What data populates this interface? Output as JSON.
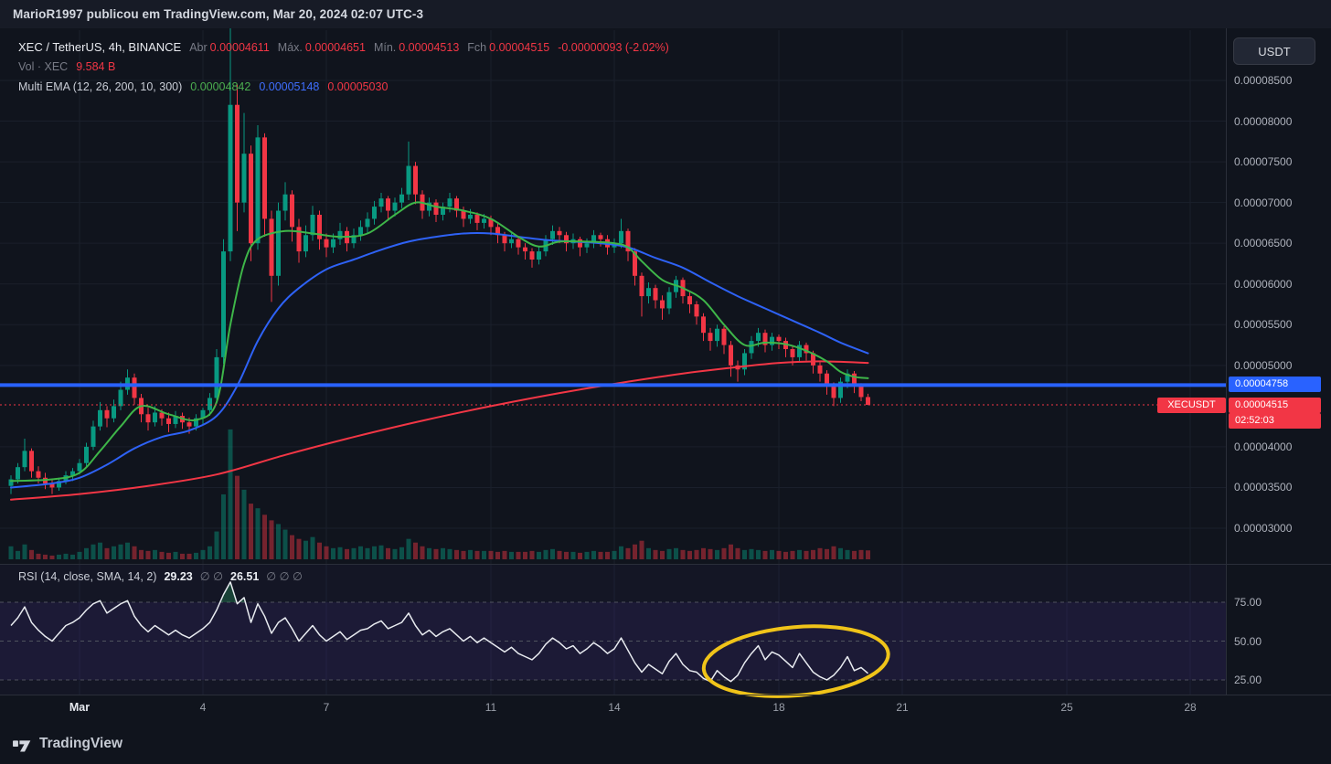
{
  "attribution": {
    "text": "MarioR1997 publicou em TradingView.com, Mar 20, 2024 02:07 UTC-3"
  },
  "header": {
    "symbol_line": {
      "title": "XEC / TetherUS, 4h, BINANCE",
      "open_label": "Abr",
      "open": "0.00004611",
      "high_label": "Máx.",
      "high": "0.00004651",
      "low_label": "Mín.",
      "low": "0.00004513",
      "close_label": "Fch",
      "close": "0.00004515",
      "change": "-0.00000093 (-2.02%)"
    },
    "volume_line": {
      "label": "Vol · XEC",
      "value": "9.584 B"
    },
    "ema_line": {
      "label": "Multi EMA (12, 26, 200, 10, 300)",
      "ema_fast": "0.00004842",
      "ema_mid": "0.00005148",
      "ema_slow": "0.00005030"
    }
  },
  "price_axis": {
    "currency_button": "USDT",
    "ticks": [
      {
        "label": "0.00008500",
        "price": 8.5
      },
      {
        "label": "0.00008000",
        "price": 8.0
      },
      {
        "label": "0.00007500",
        "price": 7.5
      },
      {
        "label": "0.00007000",
        "price": 7.0
      },
      {
        "label": "0.00006500",
        "price": 6.5
      },
      {
        "label": "0.00006000",
        "price": 6.0
      },
      {
        "label": "0.00005500",
        "price": 5.5
      },
      {
        "label": "0.00005000",
        "price": 5.0
      },
      {
        "label": "0.00004000",
        "price": 4.0
      },
      {
        "label": "0.00003500",
        "price": 3.5
      },
      {
        "label": "0.00003000",
        "price": 3.0
      }
    ],
    "blue_line": {
      "label": "0.00004758",
      "price": 4.758
    },
    "last": {
      "symbol_tag": "XECUSDT",
      "label": "0.00004515",
      "price": 4.515,
      "countdown": "02:52:03"
    }
  },
  "time_axis": {
    "ticks": [
      {
        "label": "Mar",
        "index": 10,
        "major": true
      },
      {
        "label": "4",
        "index": 28
      },
      {
        "label": "7",
        "index": 46
      },
      {
        "label": "11",
        "index": 70
      },
      {
        "label": "14",
        "index": 88
      },
      {
        "label": "18",
        "index": 112
      },
      {
        "label": "21",
        "index": 130
      },
      {
        "label": "25",
        "index": 154
      },
      {
        "label": "28",
        "index": 172
      }
    ]
  },
  "rsi_legend": {
    "title": "RSI (14, close, SMA, 14, 2)",
    "value": "29.23",
    "hidden1": "∅ ∅",
    "sma_value": "26.51",
    "hidden2": "∅ ∅ ∅",
    "levels": [
      {
        "label": "75.00",
        "value": 75
      },
      {
        "label": "50.00",
        "value": 50
      },
      {
        "label": "25.00",
        "value": 25
      }
    ]
  },
  "footer": {
    "brand": "TradingView"
  },
  "colors": {
    "up": "#089981",
    "down": "#f23645",
    "ema_fast": "#3eb649",
    "ema_mid": "#2e62f6",
    "ema_slow": "#f23645",
    "ray": "#2962ff",
    "rsi_line": "#e8ebf0",
    "annotation": "#f0c419",
    "grid": "#1a1f2b",
    "separator": "#2a2e39"
  },
  "chart_data": {
    "type": "candlestick",
    "title": "XEC / TetherUS, 4h, BINANCE",
    "exchange": "BINANCE",
    "interval": "4h",
    "price_unit": "1e-5 USDT",
    "volume_unit": "billion XEC",
    "ylim": [
      2.56,
      9.12
    ],
    "candles": [
      [
        3.52,
        3.65,
        3.42,
        3.6
      ],
      [
        3.6,
        3.8,
        3.55,
        3.75
      ],
      [
        3.75,
        4.1,
        3.7,
        3.95
      ],
      [
        3.95,
        3.98,
        3.62,
        3.7
      ],
      [
        3.7,
        3.76,
        3.55,
        3.62
      ],
      [
        3.62,
        3.68,
        3.48,
        3.55
      ],
      [
        3.55,
        3.6,
        3.42,
        3.5
      ],
      [
        3.5,
        3.62,
        3.46,
        3.58
      ],
      [
        3.58,
        3.7,
        3.54,
        3.65
      ],
      [
        3.65,
        3.74,
        3.58,
        3.7
      ],
      [
        3.7,
        3.85,
        3.66,
        3.8
      ],
      [
        3.8,
        4.05,
        3.76,
        4.0
      ],
      [
        4.0,
        4.32,
        3.96,
        4.25
      ],
      [
        4.25,
        4.55,
        4.2,
        4.45
      ],
      [
        4.45,
        4.5,
        4.24,
        4.35
      ],
      [
        4.35,
        4.58,
        4.3,
        4.5
      ],
      [
        4.5,
        4.8,
        4.45,
        4.7
      ],
      [
        4.7,
        4.95,
        4.64,
        4.85
      ],
      [
        4.85,
        4.9,
        4.52,
        4.6
      ],
      [
        4.6,
        4.65,
        4.3,
        4.4
      ],
      [
        4.4,
        4.48,
        4.2,
        4.3
      ],
      [
        4.3,
        4.5,
        4.25,
        4.42
      ],
      [
        4.42,
        4.46,
        4.26,
        4.35
      ],
      [
        4.35,
        4.42,
        4.18,
        4.28
      ],
      [
        4.28,
        4.44,
        4.23,
        4.38
      ],
      [
        4.38,
        4.42,
        4.22,
        4.3
      ],
      [
        4.3,
        4.36,
        4.16,
        4.25
      ],
      [
        4.25,
        4.4,
        4.2,
        4.35
      ],
      [
        4.35,
        4.48,
        4.28,
        4.45
      ],
      [
        4.45,
        4.66,
        4.38,
        4.6
      ],
      [
        4.6,
        5.2,
        4.55,
        5.1
      ],
      [
        5.1,
        6.55,
        5.02,
        6.4
      ],
      [
        6.4,
        9.15,
        6.28,
        8.2
      ],
      [
        8.2,
        8.45,
        6.65,
        7.0
      ],
      [
        7.0,
        8.1,
        6.88,
        7.6
      ],
      [
        7.6,
        7.7,
        6.28,
        6.5
      ],
      [
        6.5,
        7.95,
        6.42,
        7.8
      ],
      [
        7.8,
        7.85,
        6.58,
        6.8
      ],
      [
        6.8,
        6.9,
        5.78,
        6.1
      ],
      [
        6.1,
        7.0,
        5.98,
        6.9
      ],
      [
        6.9,
        7.25,
        6.78,
        7.1
      ],
      [
        7.1,
        7.15,
        6.52,
        6.7
      ],
      [
        6.7,
        6.8,
        6.26,
        6.4
      ],
      [
        6.4,
        6.72,
        6.33,
        6.6
      ],
      [
        6.6,
        6.96,
        6.53,
        6.85
      ],
      [
        6.85,
        6.9,
        6.42,
        6.55
      ],
      [
        6.55,
        6.62,
        6.33,
        6.45
      ],
      [
        6.45,
        6.62,
        6.38,
        6.55
      ],
      [
        6.55,
        6.75,
        6.48,
        6.65
      ],
      [
        6.65,
        6.7,
        6.4,
        6.5
      ],
      [
        6.5,
        6.68,
        6.44,
        6.6
      ],
      [
        6.6,
        6.78,
        6.53,
        6.7
      ],
      [
        6.7,
        6.88,
        6.63,
        6.8
      ],
      [
        6.8,
        7.02,
        6.73,
        6.95
      ],
      [
        6.95,
        7.12,
        6.88,
        7.05
      ],
      [
        7.05,
        7.08,
        6.8,
        6.9
      ],
      [
        6.9,
        7.06,
        6.83,
        7.0
      ],
      [
        7.0,
        7.18,
        6.93,
        7.1
      ],
      [
        7.1,
        7.75,
        7.03,
        7.45
      ],
      [
        7.45,
        7.5,
        6.98,
        7.1
      ],
      [
        7.1,
        7.15,
        6.8,
        6.9
      ],
      [
        6.9,
        7.06,
        6.83,
        7.0
      ],
      [
        7.0,
        7.04,
        6.76,
        6.85
      ],
      [
        6.85,
        7.0,
        6.78,
        6.95
      ],
      [
        6.95,
        7.12,
        6.88,
        7.05
      ],
      [
        7.05,
        7.08,
        6.82,
        6.9
      ],
      [
        6.9,
        6.95,
        6.7,
        6.8
      ],
      [
        6.8,
        6.92,
        6.74,
        6.85
      ],
      [
        6.85,
        6.88,
        6.66,
        6.75
      ],
      [
        6.75,
        6.86,
        6.68,
        6.8
      ],
      [
        6.8,
        6.84,
        6.6,
        6.7
      ],
      [
        6.7,
        6.75,
        6.5,
        6.6
      ],
      [
        6.6,
        6.64,
        6.4,
        6.5
      ],
      [
        6.5,
        6.62,
        6.44,
        6.55
      ],
      [
        6.55,
        6.58,
        6.36,
        6.45
      ],
      [
        6.45,
        6.5,
        6.3,
        6.4
      ],
      [
        6.4,
        6.44,
        6.2,
        6.3
      ],
      [
        6.3,
        6.46,
        6.24,
        6.4
      ],
      [
        6.4,
        6.6,
        6.34,
        6.55
      ],
      [
        6.55,
        6.72,
        6.48,
        6.65
      ],
      [
        6.65,
        6.7,
        6.5,
        6.6
      ],
      [
        6.6,
        6.64,
        6.4,
        6.5
      ],
      [
        6.5,
        6.62,
        6.43,
        6.55
      ],
      [
        6.55,
        6.58,
        6.34,
        6.45
      ],
      [
        6.45,
        6.56,
        6.38,
        6.5
      ],
      [
        6.5,
        6.66,
        6.44,
        6.6
      ],
      [
        6.6,
        6.63,
        6.46,
        6.55
      ],
      [
        6.55,
        6.6,
        6.36,
        6.45
      ],
      [
        6.45,
        6.56,
        6.38,
        6.5
      ],
      [
        6.5,
        6.8,
        6.44,
        6.65
      ],
      [
        6.65,
        6.68,
        6.28,
        6.4
      ],
      [
        6.4,
        6.44,
        5.98,
        6.1
      ],
      [
        6.1,
        6.14,
        5.6,
        5.85
      ],
      [
        5.85,
        6.02,
        5.76,
        5.95
      ],
      [
        5.95,
        5.99,
        5.7,
        5.8
      ],
      [
        5.8,
        5.86,
        5.56,
        5.7
      ],
      [
        5.7,
        5.96,
        5.63,
        5.9
      ],
      [
        5.9,
        6.1,
        5.83,
        6.05
      ],
      [
        6.05,
        6.08,
        5.76,
        5.85
      ],
      [
        5.85,
        5.9,
        5.64,
        5.75
      ],
      [
        5.75,
        5.79,
        5.5,
        5.6
      ],
      [
        5.6,
        5.64,
        5.3,
        5.4
      ],
      [
        5.4,
        5.46,
        5.18,
        5.3
      ],
      [
        5.3,
        5.5,
        5.23,
        5.45
      ],
      [
        5.45,
        5.48,
        5.14,
        5.25
      ],
      [
        5.25,
        5.3,
        4.86,
        5.0
      ],
      [
        5.0,
        5.06,
        4.8,
        4.95
      ],
      [
        4.95,
        5.2,
        4.88,
        5.15
      ],
      [
        5.15,
        5.36,
        5.08,
        5.3
      ],
      [
        5.3,
        5.46,
        5.23,
        5.4
      ],
      [
        5.4,
        5.44,
        5.16,
        5.25
      ],
      [
        5.25,
        5.4,
        5.18,
        5.35
      ],
      [
        5.35,
        5.38,
        5.2,
        5.3
      ],
      [
        5.3,
        5.34,
        5.1,
        5.2
      ],
      [
        5.2,
        5.25,
        5.0,
        5.1
      ],
      [
        5.1,
        5.3,
        5.04,
        5.25
      ],
      [
        5.25,
        5.28,
        5.06,
        5.15
      ],
      [
        5.15,
        5.18,
        4.9,
        5.0
      ],
      [
        5.0,
        5.04,
        4.8,
        4.9
      ],
      [
        4.9,
        4.94,
        4.64,
        4.75
      ],
      [
        4.75,
        4.79,
        4.5,
        4.6
      ],
      [
        4.6,
        4.85,
        4.54,
        4.8
      ],
      [
        4.8,
        4.95,
        4.72,
        4.9
      ],
      [
        4.9,
        4.93,
        4.66,
        4.75
      ],
      [
        4.75,
        4.78,
        4.56,
        4.611
      ],
      [
        4.611,
        4.651,
        4.513,
        4.515
      ]
    ],
    "volumes": [
      14,
      9,
      16,
      10,
      6,
      5,
      4,
      5,
      6,
      5,
      8,
      12,
      16,
      18,
      12,
      14,
      16,
      18,
      14,
      10,
      9,
      10,
      8,
      7,
      8,
      6,
      6,
      7,
      10,
      14,
      30,
      70,
      140,
      90,
      75,
      60,
      55,
      48,
      42,
      38,
      32,
      26,
      22,
      20,
      24,
      18,
      14,
      12,
      13,
      11,
      12,
      14,
      12,
      14,
      15,
      12,
      11,
      13,
      22,
      18,
      14,
      12,
      11,
      12,
      11,
      10,
      9,
      10,
      9,
      9,
      9,
      8,
      9,
      8,
      8,
      8,
      9,
      8,
      10,
      11,
      9,
      8,
      8,
      7,
      8,
      9,
      8,
      8,
      9,
      14,
      12,
      16,
      20,
      12,
      10,
      9,
      11,
      12,
      10,
      9,
      10,
      12,
      11,
      10,
      12,
      16,
      12,
      10,
      11,
      10,
      9,
      10,
      9,
      8,
      9,
      10,
      9,
      10,
      12,
      11,
      14,
      12,
      10,
      9,
      10,
      9.584
    ],
    "rsi_values": [
      60,
      65,
      72,
      62,
      57,
      53,
      50,
      55,
      60,
      62,
      65,
      70,
      74,
      76,
      68,
      71,
      74,
      76,
      66,
      60,
      56,
      60,
      57,
      54,
      57,
      54,
      52,
      55,
      58,
      62,
      70,
      80,
      88,
      74,
      78,
      62,
      74,
      66,
      55,
      62,
      65,
      58,
      50,
      55,
      60,
      54,
      50,
      53,
      56,
      51,
      54,
      57,
      58,
      61,
      63,
      58,
      60,
      62,
      68,
      60,
      54,
      57,
      53,
      56,
      58,
      54,
      50,
      53,
      49,
      52,
      49,
      46,
      43,
      46,
      42,
      40,
      38,
      42,
      48,
      52,
      49,
      45,
      47,
      42,
      45,
      49,
      46,
      42,
      45,
      52,
      44,
      36,
      30,
      35,
      32,
      29,
      37,
      42,
      35,
      31,
      30,
      26,
      24,
      31,
      27,
      24,
      28,
      36,
      42,
      47,
      38,
      43,
      41,
      37,
      33,
      42,
      36,
      30,
      27,
      25,
      28,
      33,
      40,
      31,
      33,
      29.23
    ],
    "ema_fast_points": [
      [
        0,
        3.58
      ],
      [
        6,
        3.6
      ],
      [
        10,
        3.68
      ],
      [
        13,
        3.95
      ],
      [
        16,
        4.25
      ],
      [
        19,
        4.5
      ],
      [
        23,
        4.4
      ],
      [
        27,
        4.33
      ],
      [
        30,
        4.55
      ],
      [
        32,
        5.5
      ],
      [
        34,
        6.25
      ],
      [
        36,
        6.55
      ],
      [
        40,
        6.65
      ],
      [
        44,
        6.62
      ],
      [
        48,
        6.58
      ],
      [
        52,
        6.62
      ],
      [
        56,
        6.85
      ],
      [
        59,
        7.0
      ],
      [
        62,
        6.95
      ],
      [
        66,
        6.9
      ],
      [
        70,
        6.8
      ],
      [
        74,
        6.58
      ],
      [
        77,
        6.46
      ],
      [
        80,
        6.52
      ],
      [
        84,
        6.52
      ],
      [
        88,
        6.5
      ],
      [
        90,
        6.45
      ],
      [
        92,
        6.28
      ],
      [
        95,
        6.05
      ],
      [
        98,
        5.95
      ],
      [
        101,
        5.8
      ],
      [
        104,
        5.5
      ],
      [
        107,
        5.25
      ],
      [
        110,
        5.28
      ],
      [
        113,
        5.26
      ],
      [
        116,
        5.18
      ],
      [
        119,
        5.05
      ],
      [
        121,
        4.92
      ],
      [
        123,
        4.86
      ],
      [
        125,
        4.842
      ]
    ],
    "ema_mid_points": [
      [
        0,
        3.5
      ],
      [
        6,
        3.55
      ],
      [
        10,
        3.62
      ],
      [
        14,
        3.78
      ],
      [
        18,
        3.98
      ],
      [
        22,
        4.12
      ],
      [
        26,
        4.2
      ],
      [
        30,
        4.38
      ],
      [
        33,
        4.75
      ],
      [
        36,
        5.3
      ],
      [
        39,
        5.7
      ],
      [
        42,
        5.95
      ],
      [
        46,
        6.18
      ],
      [
        50,
        6.3
      ],
      [
        54,
        6.42
      ],
      [
        58,
        6.52
      ],
      [
        62,
        6.58
      ],
      [
        66,
        6.62
      ],
      [
        70,
        6.62
      ],
      [
        74,
        6.58
      ],
      [
        78,
        6.54
      ],
      [
        82,
        6.52
      ],
      [
        86,
        6.5
      ],
      [
        90,
        6.45
      ],
      [
        94,
        6.32
      ],
      [
        98,
        6.2
      ],
      [
        102,
        6.02
      ],
      [
        106,
        5.85
      ],
      [
        110,
        5.7
      ],
      [
        114,
        5.55
      ],
      [
        118,
        5.4
      ],
      [
        121,
        5.28
      ],
      [
        125,
        5.148
      ]
    ],
    "ema_slow_points": [
      [
        0,
        3.35
      ],
      [
        10,
        3.42
      ],
      [
        20,
        3.52
      ],
      [
        30,
        3.66
      ],
      [
        40,
        3.9
      ],
      [
        50,
        4.12
      ],
      [
        60,
        4.32
      ],
      [
        70,
        4.5
      ],
      [
        80,
        4.66
      ],
      [
        90,
        4.8
      ],
      [
        98,
        4.9
      ],
      [
        106,
        4.98
      ],
      [
        112,
        5.03
      ],
      [
        118,
        5.05
      ],
      [
        125,
        5.03
      ]
    ],
    "levels": {
      "horizontal_ray": 4.758,
      "last_price": 4.515
    },
    "rsi_levels": [
      75,
      50,
      25
    ],
    "annotation_ellipse": {
      "pane": "rsi",
      "center_index": 114.5,
      "center_value": 37,
      "radius_candles": 13.5,
      "radius_values": 22,
      "rotation_deg": -5
    }
  }
}
